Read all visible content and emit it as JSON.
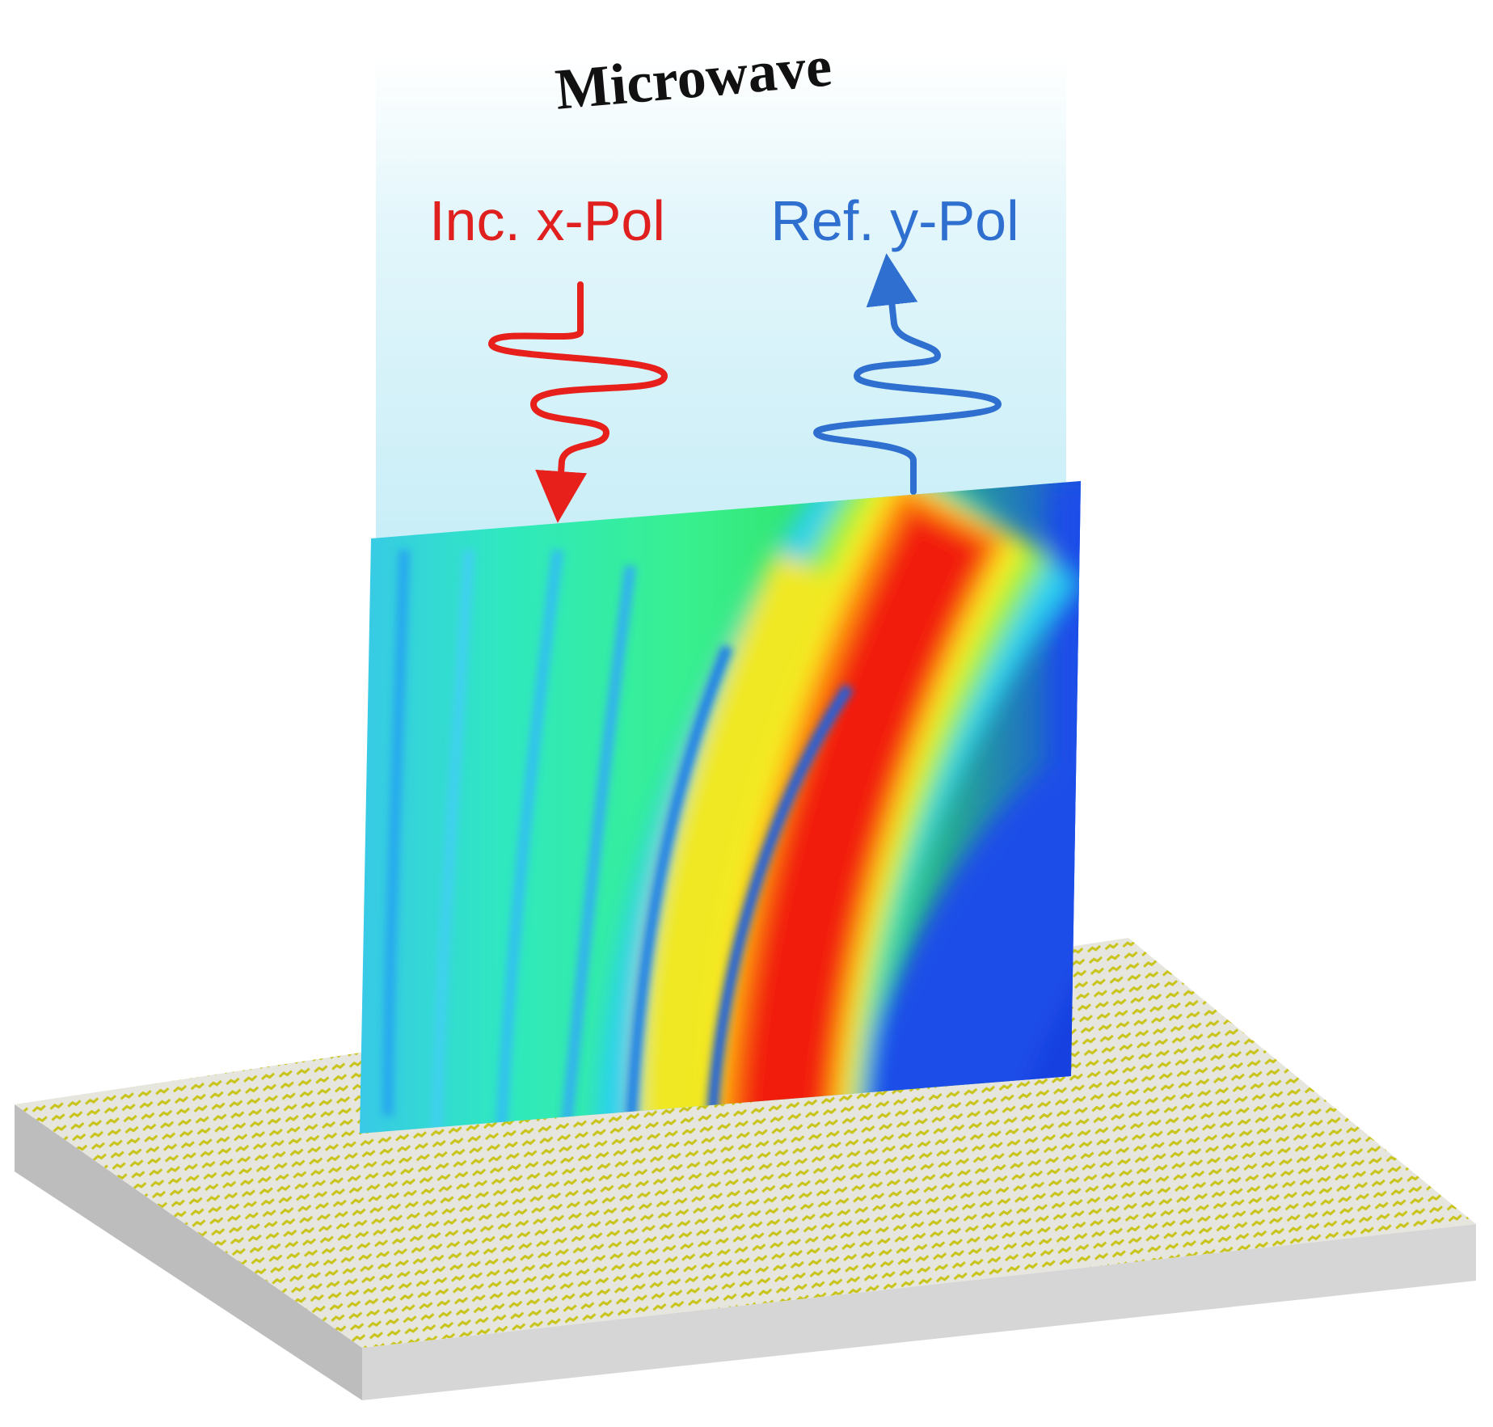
{
  "title": "Microwave",
  "labels": {
    "incident": "Inc. x-Pol",
    "reflected": "Ref. y-Pol"
  }
}
